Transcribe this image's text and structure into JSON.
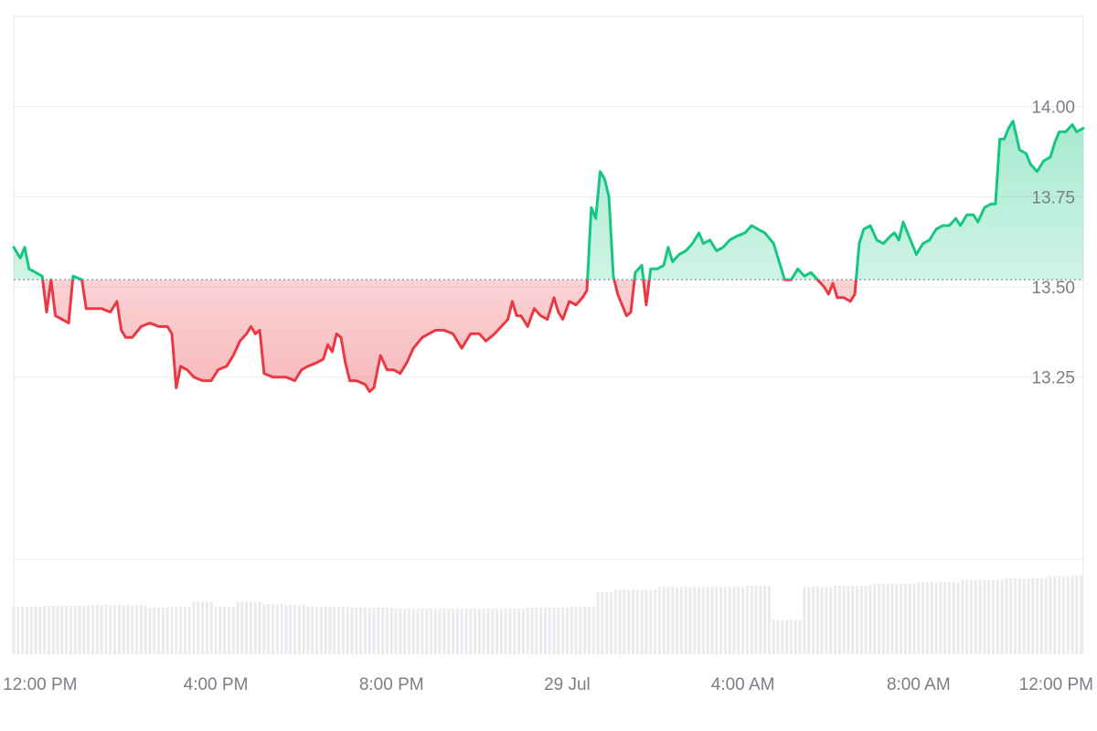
{
  "chart_data": {
    "type": "area",
    "title": "",
    "xlabel": "",
    "ylabel": "",
    "baseline": 13.52,
    "ylim": [
      12.75,
      14.25
    ],
    "xlim": [
      -0.6,
      23.75
    ],
    "y_ticks": [
      13.25,
      13.5,
      13.75,
      14.0
    ],
    "y_tick_labels": [
      "13.25",
      "13.50",
      "13.75",
      "14.00"
    ],
    "x_ticks": [
      0,
      4,
      8,
      12,
      16,
      20,
      24
    ],
    "x_tick_labels": [
      "12:00 PM",
      "4:00 PM",
      "8:00 PM",
      "29 Jul",
      "4:00 AM",
      "8:00 AM",
      "12:00 PM"
    ],
    "colors": {
      "above": "#16c784",
      "below": "#ea3943",
      "volume": "#e9ebee",
      "grid": "#ebedf0"
    },
    "price": [
      [
        -0.6,
        13.61
      ],
      [
        -0.45,
        13.58
      ],
      [
        -0.35,
        13.61
      ],
      [
        -0.25,
        13.55
      ],
      [
        -0.1,
        13.54
      ],
      [
        0.05,
        13.53
      ],
      [
        0.15,
        13.43
      ],
      [
        0.25,
        13.52
      ],
      [
        0.35,
        13.42
      ],
      [
        0.5,
        13.41
      ],
      [
        0.65,
        13.4
      ],
      [
        0.75,
        13.53
      ],
      [
        0.95,
        13.52
      ],
      [
        1.05,
        13.44
      ],
      [
        1.2,
        13.44
      ],
      [
        1.4,
        13.44
      ],
      [
        1.6,
        13.43
      ],
      [
        1.75,
        13.46
      ],
      [
        1.85,
        13.38
      ],
      [
        1.95,
        13.36
      ],
      [
        2.1,
        13.36
      ],
      [
        2.3,
        13.39
      ],
      [
        2.5,
        13.4
      ],
      [
        2.7,
        13.39
      ],
      [
        2.9,
        13.39
      ],
      [
        3.0,
        13.37
      ],
      [
        3.1,
        13.22
      ],
      [
        3.2,
        13.28
      ],
      [
        3.35,
        13.27
      ],
      [
        3.5,
        13.25
      ],
      [
        3.7,
        13.24
      ],
      [
        3.9,
        13.24
      ],
      [
        4.05,
        13.27
      ],
      [
        4.25,
        13.28
      ],
      [
        4.4,
        13.31
      ],
      [
        4.55,
        13.35
      ],
      [
        4.7,
        13.37
      ],
      [
        4.8,
        13.39
      ],
      [
        4.9,
        13.37
      ],
      [
        5.0,
        13.38
      ],
      [
        5.1,
        13.26
      ],
      [
        5.3,
        13.25
      ],
      [
        5.45,
        13.25
      ],
      [
        5.6,
        13.25
      ],
      [
        5.8,
        13.24
      ],
      [
        5.95,
        13.27
      ],
      [
        6.1,
        13.28
      ],
      [
        6.3,
        13.29
      ],
      [
        6.45,
        13.3
      ],
      [
        6.55,
        13.34
      ],
      [
        6.65,
        13.32
      ],
      [
        6.75,
        13.37
      ],
      [
        6.85,
        13.36
      ],
      [
        6.95,
        13.29
      ],
      [
        7.05,
        13.24
      ],
      [
        7.2,
        13.24
      ],
      [
        7.4,
        13.23
      ],
      [
        7.5,
        13.21
      ],
      [
        7.6,
        13.22
      ],
      [
        7.75,
        13.31
      ],
      [
        7.9,
        13.27
      ],
      [
        8.05,
        13.27
      ],
      [
        8.2,
        13.26
      ],
      [
        8.35,
        13.29
      ],
      [
        8.5,
        13.33
      ],
      [
        8.7,
        13.36
      ],
      [
        8.85,
        13.37
      ],
      [
        9.0,
        13.38
      ],
      [
        9.2,
        13.38
      ],
      [
        9.4,
        13.37
      ],
      [
        9.6,
        13.33
      ],
      [
        9.8,
        13.37
      ],
      [
        10.0,
        13.37
      ],
      [
        10.15,
        13.35
      ],
      [
        10.35,
        13.37
      ],
      [
        10.5,
        13.39
      ],
      [
        10.65,
        13.41
      ],
      [
        10.75,
        13.46
      ],
      [
        10.85,
        13.42
      ],
      [
        10.95,
        13.42
      ],
      [
        11.1,
        13.39
      ],
      [
        11.25,
        13.44
      ],
      [
        11.4,
        13.42
      ],
      [
        11.55,
        13.41
      ],
      [
        11.7,
        13.47
      ],
      [
        11.8,
        13.43
      ],
      [
        11.9,
        13.41
      ],
      [
        12.05,
        13.46
      ],
      [
        12.2,
        13.45
      ],
      [
        12.35,
        13.47
      ],
      [
        12.45,
        13.49
      ],
      [
        12.55,
        13.72
      ],
      [
        12.65,
        13.69
      ],
      [
        12.75,
        13.82
      ],
      [
        12.85,
        13.8
      ],
      [
        12.95,
        13.75
      ],
      [
        13.05,
        13.53
      ],
      [
        13.15,
        13.48
      ],
      [
        13.25,
        13.45
      ],
      [
        13.35,
        13.42
      ],
      [
        13.45,
        13.43
      ],
      [
        13.55,
        13.54
      ],
      [
        13.7,
        13.56
      ],
      [
        13.8,
        13.45
      ],
      [
        13.9,
        13.55
      ],
      [
        14.05,
        13.55
      ],
      [
        14.2,
        13.56
      ],
      [
        14.3,
        13.61
      ],
      [
        14.4,
        13.57
      ],
      [
        14.55,
        13.59
      ],
      [
        14.7,
        13.6
      ],
      [
        14.85,
        13.62
      ],
      [
        15.0,
        13.65
      ],
      [
        15.1,
        13.62
      ],
      [
        15.25,
        13.63
      ],
      [
        15.4,
        13.6
      ],
      [
        15.55,
        13.61
      ],
      [
        15.7,
        13.63
      ],
      [
        15.85,
        13.64
      ],
      [
        16.05,
        13.65
      ],
      [
        16.2,
        13.67
      ],
      [
        16.35,
        13.66
      ],
      [
        16.5,
        13.65
      ],
      [
        16.7,
        13.62
      ],
      [
        16.8,
        13.58
      ],
      [
        16.95,
        13.52
      ],
      [
        17.1,
        13.52
      ],
      [
        17.25,
        13.55
      ],
      [
        17.4,
        13.53
      ],
      [
        17.55,
        13.54
      ],
      [
        17.7,
        13.52
      ],
      [
        17.85,
        13.5
      ],
      [
        17.95,
        13.48
      ],
      [
        18.05,
        13.51
      ],
      [
        18.15,
        13.47
      ],
      [
        18.3,
        13.47
      ],
      [
        18.45,
        13.46
      ],
      [
        18.55,
        13.48
      ],
      [
        18.65,
        13.62
      ],
      [
        18.75,
        13.66
      ],
      [
        18.9,
        13.67
      ],
      [
        19.05,
        13.63
      ],
      [
        19.2,
        13.62
      ],
      [
        19.35,
        13.64
      ],
      [
        19.45,
        13.65
      ],
      [
        19.55,
        13.63
      ],
      [
        19.65,
        13.68
      ],
      [
        19.75,
        13.65
      ],
      [
        19.85,
        13.62
      ],
      [
        19.95,
        13.59
      ],
      [
        20.1,
        13.62
      ],
      [
        20.25,
        13.63
      ],
      [
        20.4,
        13.66
      ],
      [
        20.55,
        13.67
      ],
      [
        20.7,
        13.67
      ],
      [
        20.85,
        13.69
      ],
      [
        20.95,
        13.67
      ],
      [
        21.1,
        13.7
      ],
      [
        21.25,
        13.7
      ],
      [
        21.35,
        13.68
      ],
      [
        21.5,
        13.72
      ],
      [
        21.65,
        13.73
      ],
      [
        21.75,
        13.73
      ],
      [
        21.85,
        13.91
      ],
      [
        21.95,
        13.91
      ],
      [
        22.05,
        13.94
      ],
      [
        22.15,
        13.96
      ],
      [
        22.3,
        13.88
      ],
      [
        22.45,
        13.87
      ],
      [
        22.55,
        13.84
      ],
      [
        22.7,
        13.82
      ],
      [
        22.85,
        13.85
      ],
      [
        23.0,
        13.86
      ],
      [
        23.1,
        13.9
      ],
      [
        23.2,
        13.93
      ],
      [
        23.35,
        13.93
      ],
      [
        23.5,
        13.95
      ],
      [
        23.6,
        13.93
      ],
      [
        23.75,
        13.94
      ]
    ],
    "volume": [
      [
        -0.6,
        0.5
      ],
      [
        0.0,
        0.51
      ],
      [
        1.0,
        0.52
      ],
      [
        2.0,
        0.52
      ],
      [
        2.5,
        0.49
      ],
      [
        3.0,
        0.5
      ],
      [
        3.5,
        0.55
      ],
      [
        4.0,
        0.5
      ],
      [
        4.5,
        0.55
      ],
      [
        5.0,
        0.53
      ],
      [
        5.5,
        0.52
      ],
      [
        6.0,
        0.5
      ],
      [
        7.0,
        0.49
      ],
      [
        8.0,
        0.48
      ],
      [
        9.0,
        0.48
      ],
      [
        10.0,
        0.48
      ],
      [
        11.0,
        0.49
      ],
      [
        12.0,
        0.5
      ],
      [
        12.4,
        0.5
      ],
      [
        12.6,
        0.65
      ],
      [
        13.0,
        0.68
      ],
      [
        14.0,
        0.71
      ],
      [
        15.0,
        0.71
      ],
      [
        16.0,
        0.72
      ],
      [
        16.5,
        0.72
      ],
      [
        16.65,
        0.36
      ],
      [
        17.2,
        0.36
      ],
      [
        17.35,
        0.71
      ],
      [
        18.0,
        0.72
      ],
      [
        19.0,
        0.74
      ],
      [
        20.0,
        0.76
      ],
      [
        21.0,
        0.78
      ],
      [
        22.0,
        0.8
      ],
      [
        23.0,
        0.82
      ],
      [
        23.5,
        0.83
      ],
      [
        23.75,
        0.52
      ]
    ]
  }
}
